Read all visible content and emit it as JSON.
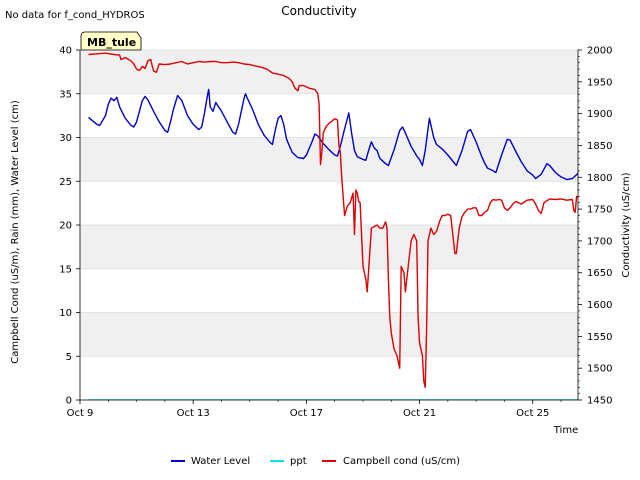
{
  "chart_data": {
    "type": "line",
    "title": "Conductivity",
    "note": "No data for f_cond_HYDROS",
    "site_label": "MB_tule",
    "xlabel": "Time",
    "ylabel_left": "Campbell Cond (uS/m), Rain (mm), Water Level (cm)",
    "ylabel_right": "Conductivity (uS/cm)",
    "x_range_days": [
      0,
      17.6
    ],
    "x_ticks": [
      {
        "day": 0,
        "label": "Oct 9"
      },
      {
        "day": 4,
        "label": "Oct 13"
      },
      {
        "day": 8,
        "label": "Oct 17"
      },
      {
        "day": 12,
        "label": "Oct 21"
      },
      {
        "day": 16,
        "label": "Oct 25"
      }
    ],
    "ylim_left": [
      0,
      40
    ],
    "y_ticks_left": [
      "0",
      "5",
      "10",
      "15",
      "20",
      "25",
      "30",
      "35",
      "40"
    ],
    "ylim_right": [
      1450,
      2000
    ],
    "y_ticks_right": [
      "1450",
      "1500",
      "1550",
      "1600",
      "1650",
      "1700",
      "1750",
      "1800",
      "1850",
      "1900",
      "1950",
      "2000"
    ],
    "legend": [
      {
        "name": "Water Level",
        "color": "#0000cc"
      },
      {
        "name": "ppt",
        "color": "#00e5e5"
      },
      {
        "name": "Campbell cond (uS/cm)",
        "color": "#dd0000"
      }
    ],
    "series": [
      {
        "name": "Water Level",
        "axis": "left",
        "color": "#0000cc",
        "points": [
          [
            0.3,
            32.3
          ],
          [
            0.6,
            31.5
          ],
          [
            0.7,
            31.4
          ],
          [
            0.9,
            32.5
          ],
          [
            1.0,
            33.8
          ],
          [
            1.1,
            34.5
          ],
          [
            1.2,
            34.2
          ],
          [
            1.3,
            34.6
          ],
          [
            1.4,
            33.5
          ],
          [
            1.6,
            32.2
          ],
          [
            1.8,
            31.4
          ],
          [
            1.9,
            31.2
          ],
          [
            2.0,
            31.8
          ],
          [
            2.1,
            33.0
          ],
          [
            2.2,
            34.2
          ],
          [
            2.3,
            34.7
          ],
          [
            2.4,
            34.3
          ],
          [
            2.6,
            33.0
          ],
          [
            2.8,
            31.8
          ],
          [
            3.0,
            30.8
          ],
          [
            3.1,
            30.6
          ],
          [
            3.2,
            31.8
          ],
          [
            3.3,
            33.2
          ],
          [
            3.45,
            34.8
          ],
          [
            3.6,
            34.2
          ],
          [
            3.8,
            32.5
          ],
          [
            4.0,
            31.5
          ],
          [
            4.2,
            30.9
          ],
          [
            4.3,
            31.2
          ],
          [
            4.4,
            32.8
          ],
          [
            4.5,
            34.7
          ],
          [
            4.55,
            35.5
          ],
          [
            4.6,
            33.5
          ],
          [
            4.7,
            33.0
          ],
          [
            4.8,
            34.0
          ],
          [
            4.9,
            33.5
          ],
          [
            5.0,
            33.0
          ],
          [
            5.2,
            31.8
          ],
          [
            5.4,
            30.6
          ],
          [
            5.5,
            30.4
          ],
          [
            5.6,
            31.5
          ],
          [
            5.7,
            33.0
          ],
          [
            5.8,
            34.5
          ],
          [
            5.85,
            35.0
          ],
          [
            5.9,
            34.6
          ],
          [
            6.1,
            33.2
          ],
          [
            6.3,
            31.5
          ],
          [
            6.5,
            30.3
          ],
          [
            6.7,
            29.5
          ],
          [
            6.8,
            29.2
          ],
          [
            6.9,
            30.8
          ],
          [
            7.0,
            32.2
          ],
          [
            7.1,
            32.5
          ],
          [
            7.2,
            31.5
          ],
          [
            7.3,
            29.8
          ],
          [
            7.5,
            28.3
          ],
          [
            7.7,
            27.7
          ],
          [
            7.9,
            27.6
          ],
          [
            8.0,
            28.0
          ],
          [
            8.2,
            29.5
          ],
          [
            8.3,
            30.4
          ],
          [
            8.4,
            30.2
          ],
          [
            8.6,
            29.3
          ],
          [
            8.8,
            28.6
          ],
          [
            9.0,
            28.0
          ],
          [
            9.1,
            27.9
          ],
          [
            9.2,
            29.0
          ],
          [
            9.35,
            31.0
          ],
          [
            9.5,
            32.8
          ],
          [
            9.6,
            30.5
          ],
          [
            9.7,
            28.5
          ],
          [
            9.8,
            27.8
          ],
          [
            10.0,
            27.5
          ],
          [
            10.1,
            27.4
          ],
          [
            10.2,
            28.5
          ],
          [
            10.3,
            29.5
          ],
          [
            10.4,
            28.8
          ],
          [
            10.5,
            28.5
          ],
          [
            10.6,
            27.6
          ],
          [
            10.8,
            27.0
          ],
          [
            10.9,
            26.8
          ],
          [
            11.1,
            28.6
          ],
          [
            11.3,
            30.8
          ],
          [
            11.4,
            31.2
          ],
          [
            11.5,
            30.5
          ],
          [
            11.7,
            29.0
          ],
          [
            11.9,
            27.9
          ],
          [
            12.0,
            27.5
          ],
          [
            12.1,
            26.8
          ],
          [
            12.2,
            28.5
          ],
          [
            12.35,
            32.2
          ],
          [
            12.5,
            30.0
          ],
          [
            12.6,
            29.2
          ],
          [
            12.8,
            28.7
          ],
          [
            13.0,
            28.0
          ],
          [
            13.2,
            27.2
          ],
          [
            13.3,
            26.8
          ],
          [
            13.5,
            28.5
          ],
          [
            13.7,
            30.7
          ],
          [
            13.8,
            30.9
          ],
          [
            14.0,
            29.5
          ],
          [
            14.2,
            27.8
          ],
          [
            14.3,
            27.1
          ],
          [
            14.4,
            26.5
          ],
          [
            14.6,
            26.2
          ],
          [
            14.7,
            26.0
          ],
          [
            14.9,
            28.0
          ],
          [
            15.1,
            29.8
          ],
          [
            15.2,
            29.7
          ],
          [
            15.4,
            28.4
          ],
          [
            15.6,
            27.2
          ],
          [
            15.8,
            26.2
          ],
          [
            16.0,
            25.7
          ],
          [
            16.1,
            25.3
          ],
          [
            16.3,
            25.8
          ],
          [
            16.5,
            27.0
          ],
          [
            16.6,
            26.8
          ],
          [
            16.8,
            26.0
          ],
          [
            17.0,
            25.5
          ],
          [
            17.2,
            25.2
          ],
          [
            17.4,
            25.3
          ],
          [
            17.6,
            25.9
          ],
          [
            17.7,
            27.6
          ],
          [
            17.8,
            28.8
          ],
          [
            17.9,
            29.0
          ],
          [
            18.0,
            28.5
          ],
          [
            18.2,
            27.2
          ],
          [
            18.35,
            26.7
          ],
          [
            18.5,
            25.5
          ],
          [
            18.65,
            24.8
          ],
          [
            18.8,
            25.0
          ],
          [
            19.0,
            26.8
          ],
          [
            19.1,
            28.5
          ],
          [
            19.2,
            28.2
          ],
          [
            19.3,
            27.2
          ],
          [
            19.45,
            26.5
          ],
          [
            19.6,
            26.4
          ],
          [
            19.7,
            26.3
          ]
        ]
      },
      {
        "name": "ppt",
        "axis": "left",
        "color": "#00e5e5",
        "points": [
          [
            0.3,
            0
          ],
          [
            17.6,
            0
          ]
        ]
      },
      {
        "name": "Campbell cond (uS/cm)",
        "axis": "right",
        "color": "#dd0000",
        "points": [
          [
            0.3,
            1993
          ],
          [
            0.6,
            1994
          ],
          [
            0.9,
            1995
          ],
          [
            1.2,
            1993
          ],
          [
            1.4,
            1992
          ],
          [
            1.45,
            1985
          ],
          [
            1.6,
            1988
          ],
          [
            1.8,
            1983
          ],
          [
            1.9,
            1978
          ],
          [
            2.0,
            1970
          ],
          [
            2.1,
            1968
          ],
          [
            2.2,
            1974
          ],
          [
            2.3,
            1971
          ],
          [
            2.4,
            1983
          ],
          [
            2.5,
            1985
          ],
          [
            2.55,
            1975
          ],
          [
            2.6,
            1967
          ],
          [
            2.7,
            1965
          ],
          [
            2.8,
            1978
          ],
          [
            3.0,
            1977
          ],
          [
            3.2,
            1978
          ],
          [
            3.4,
            1980
          ],
          [
            3.6,
            1982
          ],
          [
            3.8,
            1978
          ],
          [
            4.0,
            1980
          ],
          [
            4.2,
            1982
          ],
          [
            4.4,
            1981
          ],
          [
            4.6,
            1982
          ],
          [
            4.8,
            1982
          ],
          [
            5.0,
            1980
          ],
          [
            5.2,
            1980
          ],
          [
            5.4,
            1981
          ],
          [
            5.6,
            1980
          ],
          [
            5.8,
            1978
          ],
          [
            6.0,
            1977
          ],
          [
            6.2,
            1975
          ],
          [
            6.4,
            1973
          ],
          [
            6.6,
            1970
          ],
          [
            6.8,
            1964
          ],
          [
            7.0,
            1962
          ],
          [
            7.2,
            1960
          ],
          [
            7.4,
            1955
          ],
          [
            7.5,
            1950
          ],
          [
            7.6,
            1940
          ],
          [
            7.7,
            1936
          ],
          [
            7.75,
            1944
          ],
          [
            7.9,
            1944
          ],
          [
            8.0,
            1942
          ],
          [
            8.1,
            1940
          ],
          [
            8.3,
            1938
          ],
          [
            8.4,
            1932
          ],
          [
            8.45,
            1915
          ],
          [
            8.5,
            1820
          ],
          [
            8.55,
            1840
          ],
          [
            8.6,
            1870
          ],
          [
            8.7,
            1880
          ],
          [
            8.8,
            1885
          ],
          [
            8.9,
            1888
          ],
          [
            9.0,
            1892
          ],
          [
            9.1,
            1890
          ],
          [
            9.15,
            1850
          ],
          [
            9.2,
            1840
          ],
          [
            9.25,
            1800
          ],
          [
            9.35,
            1740
          ],
          [
            9.45,
            1755
          ],
          [
            9.55,
            1760
          ],
          [
            9.65,
            1775
          ],
          [
            9.7,
            1710
          ],
          [
            9.75,
            1780
          ],
          [
            9.8,
            1775
          ],
          [
            9.85,
            1762
          ],
          [
            9.9,
            1760
          ],
          [
            10.0,
            1660
          ],
          [
            10.1,
            1640
          ],
          [
            10.15,
            1620
          ],
          [
            10.3,
            1720
          ],
          [
            10.5,
            1725
          ],
          [
            10.6,
            1720
          ],
          [
            10.7,
            1720
          ],
          [
            10.8,
            1730
          ],
          [
            10.85,
            1720
          ],
          [
            10.9,
            1640
          ],
          [
            10.95,
            1580
          ],
          [
            11.0,
            1555
          ],
          [
            11.1,
            1530
          ],
          [
            11.2,
            1520
          ],
          [
            11.3,
            1500
          ],
          [
            11.35,
            1660
          ],
          [
            11.45,
            1650
          ],
          [
            11.5,
            1620
          ],
          [
            11.6,
            1660
          ],
          [
            11.7,
            1700
          ],
          [
            11.8,
            1710
          ],
          [
            11.9,
            1700
          ],
          [
            11.95,
            1580
          ],
          [
            12.0,
            1540
          ],
          [
            12.1,
            1520
          ],
          [
            12.15,
            1480
          ],
          [
            12.2,
            1470
          ],
          [
            12.25,
            1560
          ],
          [
            12.3,
            1700
          ],
          [
            12.4,
            1720
          ],
          [
            12.5,
            1710
          ],
          [
            12.6,
            1715
          ],
          [
            12.7,
            1730
          ],
          [
            12.8,
            1740
          ],
          [
            12.9,
            1740
          ],
          [
            13.0,
            1742
          ],
          [
            13.1,
            1740
          ],
          [
            13.2,
            1700
          ],
          [
            13.25,
            1680
          ],
          [
            13.3,
            1680
          ],
          [
            13.4,
            1720
          ],
          [
            13.5,
            1738
          ],
          [
            13.6,
            1745
          ],
          [
            13.7,
            1750
          ],
          [
            13.8,
            1750
          ],
          [
            13.9,
            1752
          ],
          [
            14.0,
            1752
          ],
          [
            14.1,
            1740
          ],
          [
            14.2,
            1740
          ],
          [
            14.3,
            1745
          ],
          [
            14.4,
            1748
          ],
          [
            14.5,
            1760
          ],
          [
            14.6,
            1765
          ],
          [
            14.7,
            1764
          ],
          [
            14.8,
            1765
          ],
          [
            14.9,
            1764
          ],
          [
            15.0,
            1752
          ],
          [
            15.1,
            1748
          ],
          [
            15.2,
            1752
          ],
          [
            15.3,
            1758
          ],
          [
            15.4,
            1762
          ],
          [
            15.6,
            1758
          ],
          [
            15.8,
            1764
          ],
          [
            16.0,
            1765
          ],
          [
            16.1,
            1758
          ],
          [
            16.2,
            1748
          ],
          [
            16.3,
            1743
          ],
          [
            16.4,
            1760
          ],
          [
            16.6,
            1766
          ],
          [
            16.8,
            1765
          ],
          [
            17.0,
            1766
          ],
          [
            17.2,
            1764
          ],
          [
            17.4,
            1765
          ],
          [
            17.45,
            1748
          ],
          [
            17.5,
            1745
          ],
          [
            17.55,
            1770
          ],
          [
            17.7,
            1768
          ],
          [
            17.9,
            1770
          ],
          [
            18.0,
            1760
          ],
          [
            18.1,
            1767
          ],
          [
            18.3,
            1766
          ],
          [
            18.35,
            1750
          ],
          [
            18.4,
            1760
          ],
          [
            18.5,
            1765
          ],
          [
            18.6,
            1780
          ],
          [
            18.7,
            1775
          ],
          [
            18.75,
            1760
          ],
          [
            18.8,
            1768
          ],
          [
            18.9,
            1770
          ],
          [
            19.0,
            1780
          ],
          [
            19.2,
            1785
          ],
          [
            19.4,
            1790
          ],
          [
            19.6,
            1795
          ],
          [
            19.7,
            1793
          ]
        ]
      }
    ]
  }
}
